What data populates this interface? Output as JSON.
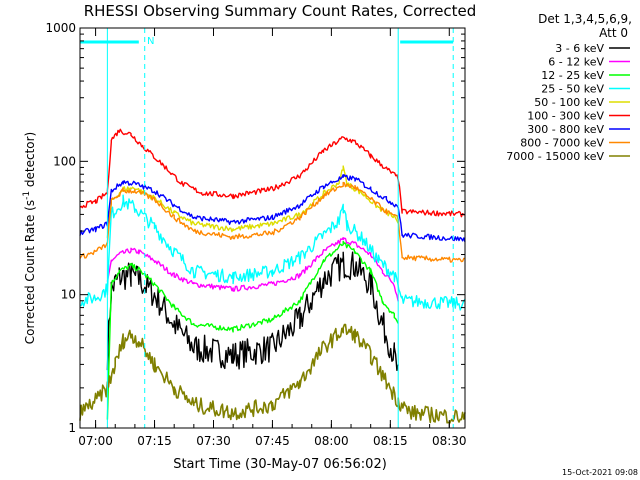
{
  "chart_data": {
    "type": "line",
    "title": "RHESSI Observing Summary Count Rates, Corrected",
    "xlabel": "Start Time (30-May-07 06:56:02)",
    "ylabel_main": "Corrected Count Rate (s",
    "ylabel_exponent": "-1",
    "ylabel_close": " detector)",
    "ylabel_note": "-1",
    "timestamp": "15-Oct-2021 09:08",
    "y_scale": "log",
    "ylim": [
      1,
      1000
    ],
    "y_ticks": [
      "1",
      "10",
      "100",
      "1000"
    ],
    "xlim": [
      "06:56:02",
      "08:34:00"
    ],
    "x_ticks": [
      "07:00",
      "07:15",
      "07:30",
      "07:45",
      "08:00",
      "08:15",
      "08:30"
    ],
    "grid": false,
    "legend": {
      "position": "top-right",
      "header": [
        "Det 1,3,4,5,6,9,",
        "Att 0"
      ]
    },
    "markers": {
      "night_label": "N",
      "night_dashed_lines": [
        "07:12:30",
        "08:31:00"
      ],
      "saa_solid_lines": [
        "07:03:00",
        "08:17:00"
      ],
      "flag_bars": [
        [
          "06:56:02",
          "07:11:00"
        ],
        [
          "08:17:30",
          "08:31:00"
        ]
      ]
    },
    "series": [
      {
        "name": "3 - 6 keV",
        "color": "#000000",
        "points": [
          [
            "07:03",
            3.5
          ],
          [
            "07:04",
            11
          ],
          [
            "07:06",
            13.5
          ],
          [
            "07:09",
            14
          ],
          [
            "07:11",
            13
          ],
          [
            "07:15",
            10
          ],
          [
            "07:20",
            6
          ],
          [
            "07:25",
            4
          ],
          [
            "07:35",
            3.5
          ],
          [
            "07:45",
            4
          ],
          [
            "07:52",
            6.5
          ],
          [
            "07:58",
            13
          ],
          [
            "08:03",
            17
          ],
          [
            "08:06",
            16.5
          ],
          [
            "08:10",
            12
          ],
          [
            "08:13",
            6
          ],
          [
            "08:16",
            3.5
          ],
          [
            "08:17",
            2.5
          ]
        ]
      },
      {
        "name": "6 - 12 keV",
        "color": "#ff00ff",
        "points": [
          [
            "07:03",
            12
          ],
          [
            "07:04",
            18
          ],
          [
            "07:06",
            20
          ],
          [
            "07:09",
            21.5
          ],
          [
            "07:11",
            21
          ],
          [
            "07:15",
            18
          ],
          [
            "07:20",
            14
          ],
          [
            "07:25",
            12
          ],
          [
            "07:35",
            11
          ],
          [
            "07:45",
            12
          ],
          [
            "07:52",
            14
          ],
          [
            "07:58",
            21
          ],
          [
            "08:03",
            26
          ],
          [
            "08:06",
            24
          ],
          [
            "08:10",
            20
          ],
          [
            "08:13",
            15
          ],
          [
            "08:16",
            12
          ],
          [
            "08:17",
            9
          ]
        ]
      },
      {
        "name": "12 - 25 keV",
        "color": "#00ff00",
        "points": [
          [
            "07:03",
            1.2
          ],
          [
            "07:04",
            12
          ],
          [
            "07:06",
            15
          ],
          [
            "07:09",
            16.5
          ],
          [
            "07:11",
            15.5
          ],
          [
            "07:15",
            12
          ],
          [
            "07:20",
            8
          ],
          [
            "07:25",
            6
          ],
          [
            "07:35",
            5.5
          ],
          [
            "07:45",
            6.5
          ],
          [
            "07:52",
            9
          ],
          [
            "07:58",
            18
          ],
          [
            "08:03",
            24
          ],
          [
            "08:06",
            21
          ],
          [
            "08:10",
            15
          ],
          [
            "08:13",
            9
          ],
          [
            "08:16",
            7
          ],
          [
            "08:17",
            6
          ]
        ]
      },
      {
        "name": "25 - 50 keV",
        "color": "#00ffff",
        "points": [
          [
            "06:56:02",
            9
          ],
          [
            "07:00",
            9.5
          ],
          [
            "07:03",
            11
          ],
          [
            "07:04",
            40
          ],
          [
            "07:07",
            50
          ],
          [
            "07:10",
            45
          ],
          [
            "07:15",
            32
          ],
          [
            "07:20",
            21
          ],
          [
            "07:25",
            15
          ],
          [
            "07:35",
            13.5
          ],
          [
            "07:45",
            15
          ],
          [
            "07:52",
            19
          ],
          [
            "07:58",
            28
          ],
          [
            "08:02",
            36
          ],
          [
            "08:03",
            45
          ],
          [
            "08:04",
            34
          ],
          [
            "08:08",
            26
          ],
          [
            "08:12",
            18
          ],
          [
            "08:16",
            14
          ],
          [
            "08:18",
            9
          ],
          [
            "08:34",
            8.5
          ]
        ]
      },
      {
        "name": "50 - 100 keV",
        "color": "#dddd00",
        "points": [
          [
            "07:03",
            27
          ],
          [
            "07:04",
            50
          ],
          [
            "07:07",
            62
          ],
          [
            "07:10",
            63
          ],
          [
            "07:15",
            53
          ],
          [
            "07:20",
            41
          ],
          [
            "07:25",
            34
          ],
          [
            "07:35",
            31
          ],
          [
            "07:45",
            34
          ],
          [
            "07:52",
            40
          ],
          [
            "07:58",
            57
          ],
          [
            "08:02",
            70
          ],
          [
            "08:03",
            90
          ],
          [
            "08:04",
            68
          ],
          [
            "08:08",
            57
          ],
          [
            "08:12",
            45
          ],
          [
            "08:16",
            38
          ],
          [
            "08:17",
            33
          ]
        ]
      },
      {
        "name": "100 - 300 keV",
        "color": "#ff0000",
        "points": [
          [
            "06:56:02",
            46
          ],
          [
            "07:00",
            50
          ],
          [
            "07:03",
            58
          ],
          [
            "07:04",
            145
          ],
          [
            "07:06",
            170
          ],
          [
            "07:09",
            160
          ],
          [
            "07:12",
            130
          ],
          [
            "07:17",
            95
          ],
          [
            "07:22",
            68
          ],
          [
            "07:27",
            58
          ],
          [
            "07:35",
            55
          ],
          [
            "07:45",
            62
          ],
          [
            "07:52",
            78
          ],
          [
            "07:58",
            120
          ],
          [
            "08:03",
            150
          ],
          [
            "08:06",
            140
          ],
          [
            "08:10",
            110
          ],
          [
            "08:14",
            88
          ],
          [
            "08:17",
            75
          ],
          [
            "08:18",
            42
          ],
          [
            "08:34",
            40
          ]
        ]
      },
      {
        "name": "300 - 800 keV",
        "color": "#0000ff",
        "points": [
          [
            "06:56:02",
            29
          ],
          [
            "07:00",
            31
          ],
          [
            "07:03",
            34
          ],
          [
            "07:04",
            60
          ],
          [
            "07:07",
            70
          ],
          [
            "07:10",
            68
          ],
          [
            "07:15",
            60
          ],
          [
            "07:20",
            47
          ],
          [
            "07:25",
            38
          ],
          [
            "07:35",
            35
          ],
          [
            "07:45",
            38
          ],
          [
            "07:52",
            47
          ],
          [
            "07:58",
            65
          ],
          [
            "08:03",
            76
          ],
          [
            "08:06",
            74
          ],
          [
            "08:10",
            62
          ],
          [
            "08:14",
            52
          ],
          [
            "08:17",
            46
          ],
          [
            "08:18",
            28
          ],
          [
            "08:34",
            26
          ]
        ]
      },
      {
        "name": "800 - 7000 keV",
        "color": "#ff8800",
        "points": [
          [
            "06:56:02",
            19
          ],
          [
            "07:00",
            21
          ],
          [
            "07:03",
            24
          ],
          [
            "07:04",
            50
          ],
          [
            "07:07",
            60
          ],
          [
            "07:10",
            60
          ],
          [
            "07:15",
            52
          ],
          [
            "07:20",
            38
          ],
          [
            "07:25",
            30
          ],
          [
            "07:35",
            27
          ],
          [
            "07:45",
            29
          ],
          [
            "07:52",
            38
          ],
          [
            "07:58",
            55
          ],
          [
            "08:03",
            67
          ],
          [
            "08:06",
            64
          ],
          [
            "08:10",
            52
          ],
          [
            "08:14",
            42
          ],
          [
            "08:17",
            37
          ],
          [
            "08:18",
            19
          ],
          [
            "08:34",
            18
          ]
        ]
      },
      {
        "name": "7000 - 15000 keV",
        "color": "#808000",
        "points": [
          [
            "06:56:02",
            1.3
          ],
          [
            "07:00",
            1.6
          ],
          [
            "07:03",
            2
          ],
          [
            "07:05",
            3
          ],
          [
            "07:07",
            4.5
          ],
          [
            "07:09",
            5
          ],
          [
            "07:11",
            4.5
          ],
          [
            "07:15",
            3
          ],
          [
            "07:20",
            2
          ],
          [
            "07:25",
            1.5
          ],
          [
            "07:35",
            1.3
          ],
          [
            "07:45",
            1.5
          ],
          [
            "07:52",
            2.2
          ],
          [
            "07:58",
            4
          ],
          [
            "08:03",
            5.5
          ],
          [
            "08:06",
            5
          ],
          [
            "08:10",
            3.5
          ],
          [
            "08:14",
            2.2
          ],
          [
            "08:17",
            1.6
          ],
          [
            "08:20",
            1.3
          ],
          [
            "08:34",
            1.2
          ]
        ]
      }
    ]
  }
}
